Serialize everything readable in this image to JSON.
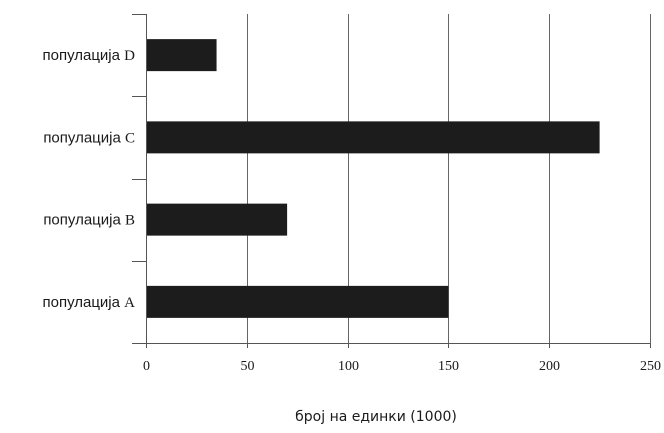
{
  "chart_data": {
    "type": "bar",
    "orientation": "horizontal",
    "categories": [
      {
        "prefix": "популација",
        "letter": "A"
      },
      {
        "prefix": "популација",
        "letter": "B"
      },
      {
        "prefix": "популација",
        "letter": "C"
      },
      {
        "prefix": "популација",
        "letter": "D"
      }
    ],
    "values": [
      150,
      70,
      225,
      35
    ],
    "xlabel": "број на единки (1000)",
    "xlim": [
      0,
      250
    ],
    "xticks": [
      "0",
      "50",
      "100",
      "150",
      "200",
      "250"
    ],
    "grid": "vertical",
    "bar_color": "#1c1c1c",
    "grid_color": "#666666",
    "axis_color": "#555555"
  }
}
